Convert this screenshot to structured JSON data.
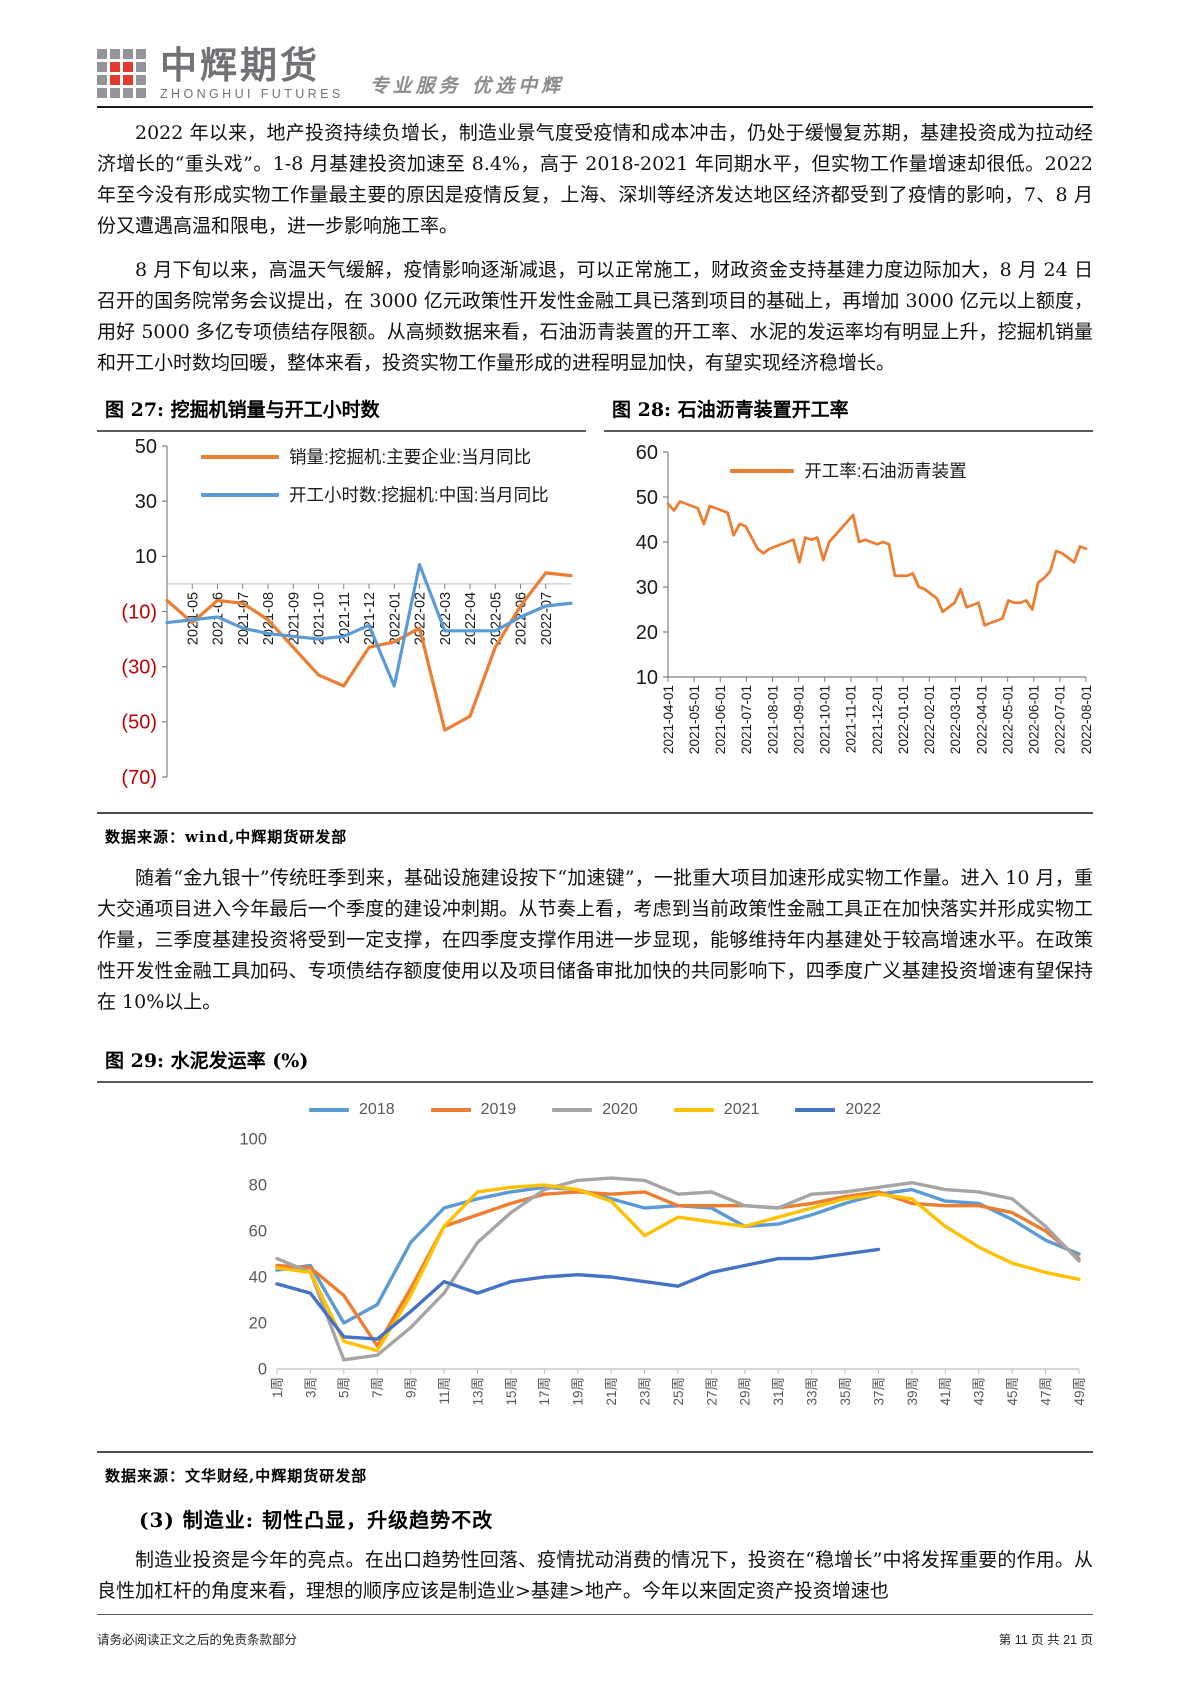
{
  "header": {
    "logo_cn": "中辉期货",
    "logo_en": "ZHONGHUI FUTURES",
    "tagline": "专业服务 优选中辉"
  },
  "paragraphs": {
    "p1": "2022 年以来，地产投资持续负增长，制造业景气度受疫情和成本冲击，仍处于缓慢复苏期，基建投资成为拉动经济增长的“重头戏”。1-8 月基建投资加速至 8.4%，高于 2018-2021 年同期水平，但实物工作量增速却很低。2022 年至今没有形成实物工作量最主要的原因是疫情反复，上海、深圳等经济发达地区经济都受到了疫情的影响，7、8 月份又遭遇高温和限电，进一步影响施工率。",
    "p2": "8 月下旬以来，高温天气缓解，疫情影响逐渐减退，可以正常施工，财政资金支持基建力度边际加大，8 月 24 日召开的国务院常务会议提出，在 3000 亿元政策性开发性金融工具已落到项目的基础上，再增加 3000 亿元以上额度，用好 5000 多亿专项债结存限额。从高频数据来看，石油沥青装置的开工率、水泥的发运率均有明显上升，挖掘机销量和开工小时数均回暖，整体来看，投资实物工作量形成的进程明显加快，有望实现经济稳增长。",
    "p3": "随着“金九银十”传统旺季到来，基础设施建设按下“加速键”，一批重大项目加速形成实物工作量。进入 10 月，重大交通项目进入今年最后一个季度的建设冲刺期。从节奏上看，考虑到当前政策性金融工具正在加快落实并形成实物工作量，三季度基建投资将受到一定支撑，在四季度支撑作用进一步显现，能够维持年内基建处于较高增速水平。在政策性开发性金融工具加码、专项债结存额度使用以及项目储备审批加快的共同影响下，四季度广义基建投资增速有望保持在 10%以上。",
    "p4": "制造业投资是今年的亮点。在出口趋势性回落、疫情扰动消费的情况下，投资在“稳增长”中将发挥重要的作用。从良性加杠杆的角度来看，理想的顺序应该是制造业>基建>地产。今年以来固定资产投资增速也"
  },
  "section_heading": "(3) 制造业: 韧性凸显，升级趋势不改",
  "sources": {
    "s1": "数据来源：wind,中辉期货研发部",
    "s2": "数据来源：文华财经,中辉期货研发部"
  },
  "footer": {
    "left": "请务必阅读正文之后的免责条款部分",
    "right": "第 11 页 共 21 页"
  },
  "chart_data": [
    {
      "id": "fig27",
      "type": "line",
      "title": "图 27: 挖掘机销量与开工小时数",
      "x": [
        "2021-04",
        "2021-05",
        "2021-06",
        "2021-07",
        "2021-08",
        "2021-09",
        "2021-10",
        "2021-11",
        "2021-12",
        "2022-01",
        "2022-02",
        "2022-03",
        "2022-04",
        "2022-05",
        "2022-06",
        "2022-07",
        "2022-08"
      ],
      "x_tick_labels": [
        "2021-05",
        "2021-06",
        "2021-07",
        "2021-08",
        "2021-09",
        "2021-10",
        "2021-11",
        "2021-12",
        "2022-01",
        "2022-02",
        "2022-03",
        "2022-04",
        "2022-05",
        "2022-06",
        "2022-07"
      ],
      "tick_mode": "index",
      "tick_start": 1,
      "ylim": [
        -70,
        50
      ],
      "yticks": [
        50,
        30,
        10,
        -10,
        -30,
        -50,
        -70
      ],
      "neg_parens": true,
      "neg_color": "#C00000",
      "legend_position": "top-left-inside",
      "series": [
        {
          "name": "销量:挖掘机:主要企业:当月同比",
          "color": "#ED7D31",
          "values": [
            -6,
            -14,
            -6,
            -7,
            -13,
            -23,
            -33,
            -37,
            -23,
            -21,
            -16,
            -53,
            -48,
            -23,
            -8,
            4,
            3
          ]
        },
        {
          "name": "开工小时数:挖掘机:中国:当月同比",
          "color": "#5B9BD5",
          "values": [
            -14,
            -13,
            -12,
            -16,
            -18,
            -19,
            -20,
            -19,
            -15,
            -37,
            7,
            -17,
            -17,
            -17,
            -12,
            -8,
            -7
          ]
        }
      ]
    },
    {
      "id": "fig28",
      "type": "line",
      "title": "图 28: 石油沥青装置开工率",
      "x_tick_labels": [
        "2021-04-01",
        "2021-05-01",
        "2021-06-01",
        "2021-07-01",
        "2021-08-01",
        "2021-09-01",
        "2021-10-01",
        "2021-11-01",
        "2021-12-01",
        "2022-01-01",
        "2022-02-01",
        "2022-03-01",
        "2022-04-01",
        "2022-05-01",
        "2022-06-01",
        "2022-07-01",
        "2022-08-01"
      ],
      "tick_mode": "spread",
      "ylim": [
        10,
        60
      ],
      "yticks": [
        60,
        50,
        40,
        30,
        20,
        10
      ],
      "legend_position": "top-center-inside",
      "series": [
        {
          "name": "开工率:石油沥青装置",
          "color": "#ED7D31",
          "values": [
            48.5,
            47,
            49,
            48.5,
            48,
            47.5,
            44,
            48,
            47.5,
            47,
            46.5,
            41.5,
            44,
            43.5,
            41,
            38.5,
            37.5,
            38.5,
            39,
            39.5,
            40,
            40.5,
            35.5,
            41,
            40.5,
            41,
            36,
            40,
            41.5,
            43,
            44.5,
            46,
            40,
            40.5,
            40,
            39.5,
            40,
            39.5,
            32.5,
            32.5,
            32.5,
            33,
            30,
            29.5,
            28.5,
            27.5,
            24.5,
            25.5,
            26.5,
            29.5,
            25.5,
            26,
            26.5,
            21.5,
            22,
            22.5,
            23,
            27,
            26.5,
            26.5,
            27,
            25,
            31,
            32,
            33.5,
            38,
            37.5,
            36.5,
            35.5,
            39,
            38.5
          ]
        }
      ]
    },
    {
      "id": "fig29",
      "type": "line",
      "title": "图 29: 水泥发运率 (%)",
      "categories": [
        "1周",
        "3周",
        "5周",
        "7周",
        "9周",
        "11周",
        "13周",
        "15周",
        "17周",
        "19周",
        "21周",
        "23周",
        "25周",
        "27周",
        "29周",
        "31周",
        "33周",
        "35周",
        "37周",
        "39周",
        "41周",
        "43周",
        "45周",
        "47周",
        "49周"
      ],
      "tick_mode": "index",
      "tick_start": 0,
      "ylim": [
        0,
        100
      ],
      "yticks": [
        100,
        80,
        60,
        40,
        20,
        0
      ],
      "legend_position": "top-center",
      "series": [
        {
          "name": "2018",
          "color": "#5B9BD5",
          "values": [
            43,
            45,
            20,
            28,
            55,
            70,
            74,
            77,
            79,
            78,
            74,
            70,
            71,
            70,
            62,
            63,
            67,
            72,
            76,
            78,
            73,
            72,
            65,
            56,
            50
          ]
        },
        {
          "name": "2019",
          "color": "#ED7D31",
          "values": [
            45,
            44,
            32,
            10,
            35,
            62,
            67,
            72,
            76,
            77,
            76,
            77,
            71,
            71,
            71,
            70,
            72,
            75,
            77,
            72,
            71,
            71,
            68,
            60,
            48
          ]
        },
        {
          "name": "2020",
          "color": "#A5A5A5",
          "values": [
            48,
            42,
            4,
            6,
            18,
            33,
            55,
            68,
            78,
            82,
            83,
            82,
            76,
            77,
            71,
            70,
            76,
            77,
            79,
            81,
            78,
            77,
            74,
            62,
            47
          ]
        },
        {
          "name": "2021",
          "color": "#FFC000",
          "values": [
            44,
            42,
            12,
            8,
            32,
            62,
            77,
            79,
            80,
            78,
            73,
            58,
            66,
            64,
            62,
            66,
            70,
            74,
            76,
            74,
            62,
            53,
            46,
            42,
            39
          ]
        },
        {
          "name": "2022",
          "color": "#4472C4",
          "values": [
            37,
            33,
            14,
            13,
            25,
            38,
            33,
            38,
            40,
            41,
            40,
            38,
            36,
            42,
            45,
            48,
            48,
            50,
            52
          ]
        }
      ]
    }
  ]
}
